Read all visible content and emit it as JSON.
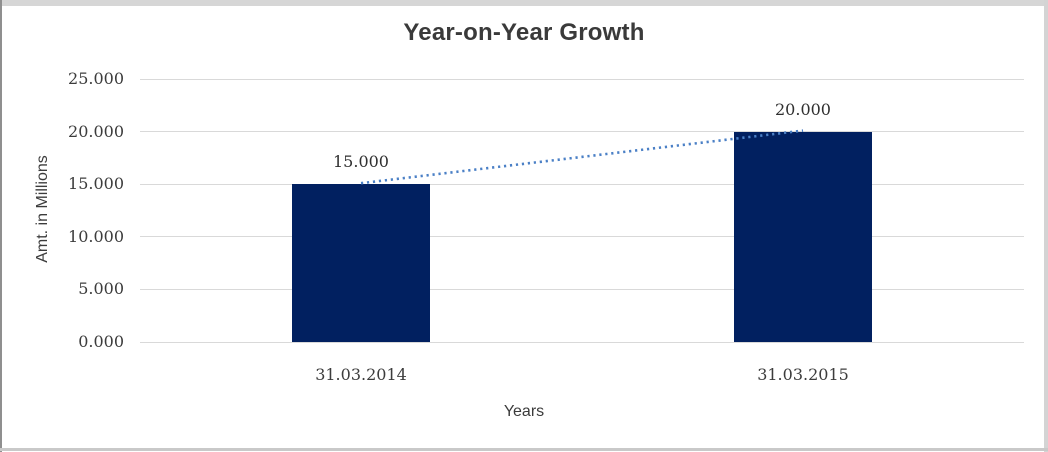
{
  "chart_data": {
    "type": "bar",
    "title": "Year-on-Year Growth",
    "xlabel": "Years",
    "ylabel": "Amt. in Millions",
    "categories": [
      "31.03.2014",
      "31.03.2015"
    ],
    "values": [
      15000,
      20000
    ],
    "data_labels": [
      "15.000",
      "20.000"
    ],
    "series": [
      {
        "name": "bars",
        "type": "bar",
        "values": [
          15000,
          20000
        ]
      },
      {
        "name": "trend",
        "type": "dotted-line",
        "values": [
          15000,
          20000
        ]
      }
    ],
    "y_ticks": [
      {
        "value": 0,
        "label": "0.000"
      },
      {
        "value": 5000,
        "label": "5.000"
      },
      {
        "value": 10000,
        "label": "10.000"
      },
      {
        "value": 15000,
        "label": "15.000"
      },
      {
        "value": 20000,
        "label": "20.000"
      },
      {
        "value": 25000,
        "label": "25.000"
      }
    ],
    "ylim": [
      0,
      25000
    ],
    "grid": "horizontal",
    "legend": "none",
    "colors": {
      "bar": "#012060",
      "trendline": "#4b80c6",
      "gridline": "#d9d9d9",
      "title_text": "#3a3a3a",
      "axis_text": "#3c3c3c",
      "frame_border": "#d6d6d6"
    }
  }
}
